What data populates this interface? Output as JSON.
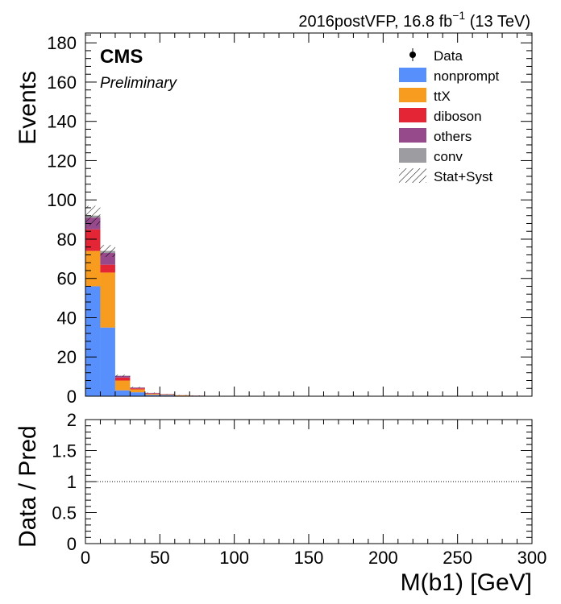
{
  "header": {
    "lumi_prefix": "2016postVFP, 16.8 fb",
    "lumi_exponent": "−1",
    "lumi_suffix": " (13 TeV)",
    "experiment": "CMS",
    "status": "Preliminary"
  },
  "legend": [
    {
      "label": "Data",
      "kind": "marker",
      "color": "#000000"
    },
    {
      "label": "nonprompt",
      "kind": "fill",
      "color": "#5790fc"
    },
    {
      "label": "ttX",
      "kind": "fill",
      "color": "#f89c20"
    },
    {
      "label": "diboson",
      "kind": "fill",
      "color": "#e42536"
    },
    {
      "label": "others",
      "kind": "fill",
      "color": "#964a8b"
    },
    {
      "label": "conv",
      "kind": "fill",
      "color": "#9c9ca1"
    },
    {
      "label": "Stat+Syst",
      "kind": "hatch",
      "color": "#000000"
    }
  ],
  "chart_data": [
    {
      "type": "bar",
      "stacked": true,
      "xlabel": "",
      "ylabel": "Events",
      "xlim": [
        0,
        300
      ],
      "ylim": [
        0,
        185
      ],
      "y_ticks": [
        0,
        20,
        40,
        60,
        80,
        100,
        120,
        140,
        160,
        180
      ],
      "bin_edges": [
        0,
        10,
        20,
        30,
        40,
        50,
        60,
        70,
        80
      ],
      "series": [
        {
          "name": "nonprompt",
          "color": "#5790fc",
          "values": [
            56,
            35,
            3,
            2,
            0.7,
            0.6,
            0.2,
            0.1
          ]
        },
        {
          "name": "ttX",
          "color": "#f89c20",
          "values": [
            18,
            28,
            5,
            1.5,
            0.5,
            0.3,
            0.2,
            0.1
          ]
        },
        {
          "name": "diboson",
          "color": "#e42536",
          "values": [
            11,
            4,
            1.5,
            0.5,
            0.2,
            0.1,
            0.05,
            0.05
          ]
        },
        {
          "name": "others",
          "color": "#964a8b",
          "values": [
            6,
            6,
            0.8,
            0.4,
            0.2,
            0.1,
            0.05,
            0.05
          ]
        },
        {
          "name": "conv",
          "color": "#9c9ca1",
          "values": [
            1,
            1,
            0.2,
            0.1,
            0.1,
            0.05,
            0.02,
            0.02
          ]
        }
      ],
      "uncertainty": [
        5,
        3,
        0.5,
        0.3,
        0.2,
        0.1,
        0.05,
        0.05
      ],
      "legend_position": "top-right"
    },
    {
      "type": "line",
      "role": "ratio",
      "xlabel": "M(b1) [GeV]",
      "ylabel": "Data / Pred",
      "xlim": [
        0,
        300
      ],
      "ylim": [
        0,
        2
      ],
      "y_ticks": [
        0,
        0.5,
        1,
        1.5,
        2
      ],
      "y_tick_labels": [
        "0",
        "0.5",
        "1",
        "1.5",
        "2"
      ],
      "reference": 1,
      "x_ticks": [
        0,
        50,
        100,
        150,
        200,
        250,
        300
      ]
    }
  ]
}
